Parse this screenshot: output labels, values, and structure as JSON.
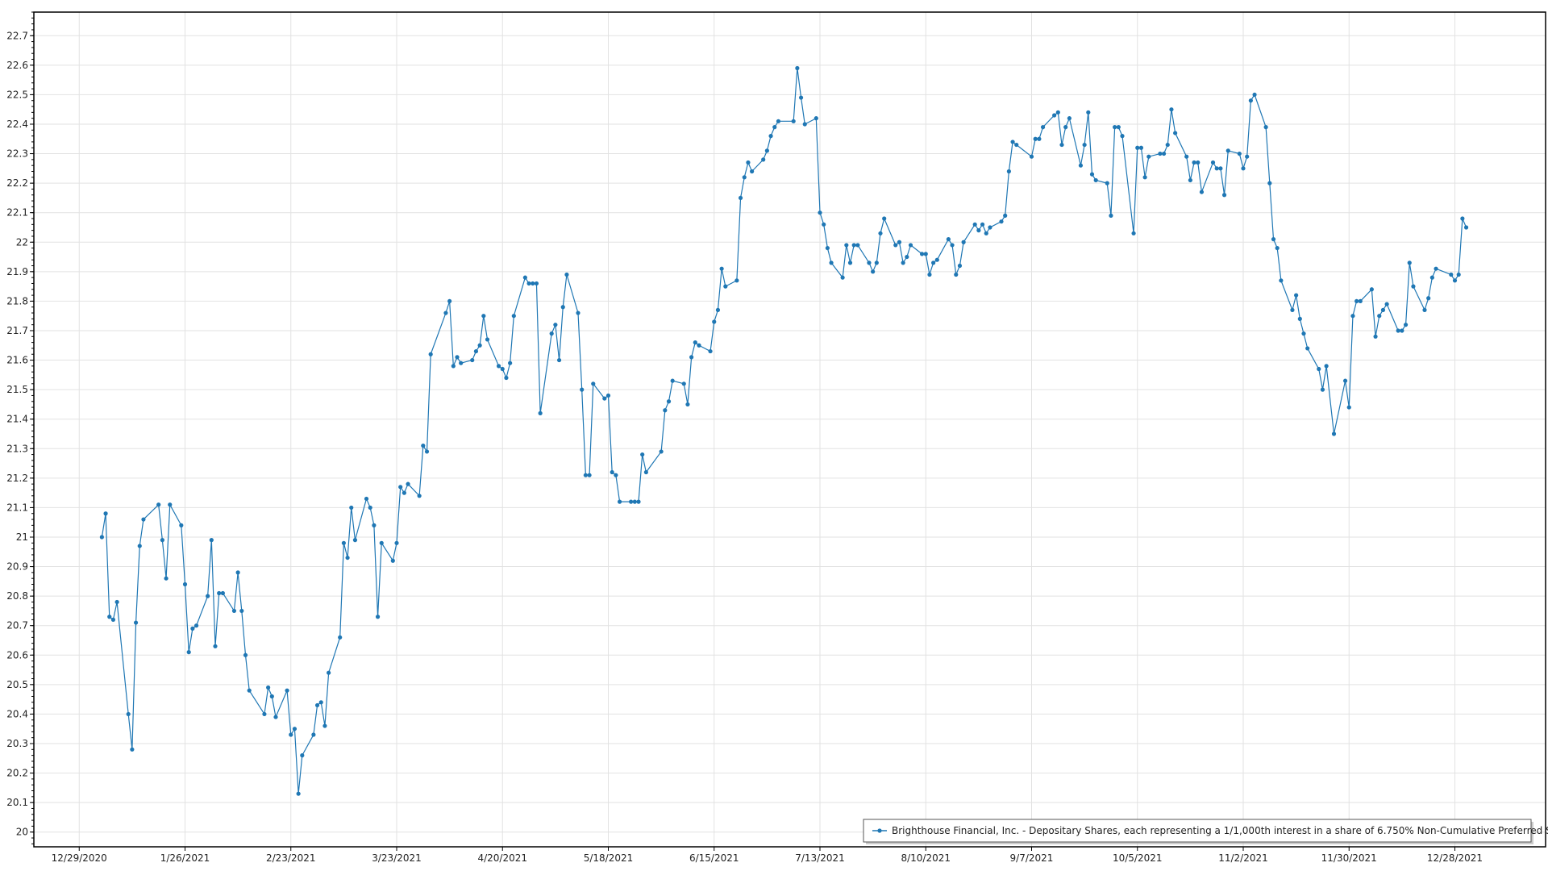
{
  "chart_data": {
    "type": "line",
    "title": "",
    "xlabel": "",
    "ylabel": "",
    "grid": true,
    "legend_position": "bottom-right",
    "line_color": "#1f77b4",
    "xlim": [
      "2020-12-17",
      "2022-01-21"
    ],
    "ylim": [
      19.95,
      22.78
    ],
    "x_ticks": [
      "12/29/2020",
      "1/26/2021",
      "2/23/2021",
      "3/23/2021",
      "4/20/2021",
      "5/18/2021",
      "6/15/2021",
      "7/13/2021",
      "8/10/2021",
      "9/7/2021",
      "10/5/2021",
      "11/2/2021",
      "11/30/2021",
      "12/28/2021"
    ],
    "y_ticks": [
      "20",
      "20.1",
      "20.2",
      "20.3",
      "20.4",
      "20.5",
      "20.6",
      "20.7",
      "20.8",
      "20.9",
      "21",
      "21.1",
      "21.2",
      "21.3",
      "21.4",
      "21.5",
      "21.6",
      "21.7",
      "21.8",
      "21.9",
      "22",
      "22.1",
      "22.2",
      "22.3",
      "22.4",
      "22.5",
      "22.6",
      "22.7"
    ],
    "series": [
      {
        "name": "Brighthouse Financial, Inc. - Depositary Shares, each representing a 1/1,000th interest in a share of 6.750% Non-Cumulative Preferred Stock, Series B",
        "x": [
          "2021-01-04",
          "2021-01-05",
          "2021-01-06",
          "2021-01-07",
          "2021-01-08",
          "2021-01-11",
          "2021-01-12",
          "2021-01-13",
          "2021-01-14",
          "2021-01-15",
          "2021-01-19",
          "2021-01-20",
          "2021-01-21",
          "2021-01-22",
          "2021-01-25",
          "2021-01-26",
          "2021-01-27",
          "2021-01-28",
          "2021-01-29",
          "2021-02-01",
          "2021-02-02",
          "2021-02-03",
          "2021-02-04",
          "2021-02-05",
          "2021-02-08",
          "2021-02-09",
          "2021-02-10",
          "2021-02-11",
          "2021-02-12",
          "2021-02-16",
          "2021-02-17",
          "2021-02-18",
          "2021-02-19",
          "2021-02-22",
          "2021-02-23",
          "2021-02-24",
          "2021-02-25",
          "2021-02-26",
          "2021-03-01",
          "2021-03-02",
          "2021-03-03",
          "2021-03-04",
          "2021-03-05",
          "2021-03-08",
          "2021-03-09",
          "2021-03-10",
          "2021-03-11",
          "2021-03-12",
          "2021-03-15",
          "2021-03-16",
          "2021-03-17",
          "2021-03-18",
          "2021-03-19",
          "2021-03-22",
          "2021-03-23",
          "2021-03-24",
          "2021-03-25",
          "2021-03-26",
          "2021-03-29",
          "2021-03-30",
          "2021-03-31",
          "2021-04-01",
          "2021-04-05",
          "2021-04-06",
          "2021-04-07",
          "2021-04-08",
          "2021-04-09",
          "2021-04-12",
          "2021-04-13",
          "2021-04-14",
          "2021-04-15",
          "2021-04-16",
          "2021-04-19",
          "2021-04-20",
          "2021-04-21",
          "2021-04-22",
          "2021-04-23",
          "2021-04-26",
          "2021-04-27",
          "2021-04-28",
          "2021-04-29",
          "2021-04-30",
          "2021-05-03",
          "2021-05-04",
          "2021-05-05",
          "2021-05-06",
          "2021-05-07",
          "2021-05-10",
          "2021-05-11",
          "2021-05-12",
          "2021-05-13",
          "2021-05-14",
          "2021-05-17",
          "2021-05-18",
          "2021-05-19",
          "2021-05-20",
          "2021-05-21",
          "2021-05-24",
          "2021-05-25",
          "2021-05-26",
          "2021-05-27",
          "2021-05-28",
          "2021-06-01",
          "2021-06-02",
          "2021-06-03",
          "2021-06-04",
          "2021-06-07",
          "2021-06-08",
          "2021-06-09",
          "2021-06-10",
          "2021-06-11",
          "2021-06-14",
          "2021-06-15",
          "2021-06-16",
          "2021-06-17",
          "2021-06-18",
          "2021-06-21",
          "2021-06-22",
          "2021-06-23",
          "2021-06-24",
          "2021-06-25",
          "2021-06-28",
          "2021-06-29",
          "2021-06-30",
          "2021-07-01",
          "2021-07-02",
          "2021-07-06",
          "2021-07-07",
          "2021-07-08",
          "2021-07-09",
          "2021-07-12",
          "2021-07-13",
          "2021-07-14",
          "2021-07-15",
          "2021-07-16",
          "2021-07-19",
          "2021-07-20",
          "2021-07-21",
          "2021-07-22",
          "2021-07-23",
          "2021-07-26",
          "2021-07-27",
          "2021-07-28",
          "2021-07-29",
          "2021-07-30",
          "2021-08-02",
          "2021-08-03",
          "2021-08-04",
          "2021-08-05",
          "2021-08-06",
          "2021-08-09",
          "2021-08-10",
          "2021-08-11",
          "2021-08-12",
          "2021-08-13",
          "2021-08-16",
          "2021-08-17",
          "2021-08-18",
          "2021-08-19",
          "2021-08-20",
          "2021-08-23",
          "2021-08-24",
          "2021-08-25",
          "2021-08-26",
          "2021-08-27",
          "2021-08-30",
          "2021-08-31",
          "2021-09-01",
          "2021-09-02",
          "2021-09-03",
          "2021-09-07",
          "2021-09-08",
          "2021-09-09",
          "2021-09-10",
          "2021-09-13",
          "2021-09-14",
          "2021-09-15",
          "2021-09-16",
          "2021-09-17",
          "2021-09-20",
          "2021-09-21",
          "2021-09-22",
          "2021-09-23",
          "2021-09-24",
          "2021-09-27",
          "2021-09-28",
          "2021-09-29",
          "2021-09-30",
          "2021-10-01",
          "2021-10-04",
          "2021-10-05",
          "2021-10-06",
          "2021-10-07",
          "2021-10-08",
          "2021-10-11",
          "2021-10-12",
          "2021-10-13",
          "2021-10-14",
          "2021-10-15",
          "2021-10-18",
          "2021-10-19",
          "2021-10-20",
          "2021-10-21",
          "2021-10-22",
          "2021-10-25",
          "2021-10-26",
          "2021-10-27",
          "2021-10-28",
          "2021-10-29",
          "2021-11-01",
          "2021-11-02",
          "2021-11-03",
          "2021-11-04",
          "2021-11-05",
          "2021-11-08",
          "2021-11-09",
          "2021-11-10",
          "2021-11-11",
          "2021-11-12",
          "2021-11-15",
          "2021-11-16",
          "2021-11-17",
          "2021-11-18",
          "2021-11-19",
          "2021-11-22",
          "2021-11-23",
          "2021-11-24",
          "2021-11-26",
          "2021-11-29",
          "2021-11-30",
          "2021-12-01",
          "2021-12-02",
          "2021-12-03",
          "2021-12-06",
          "2021-12-07",
          "2021-12-08",
          "2021-12-09",
          "2021-12-10",
          "2021-12-13",
          "2021-12-14",
          "2021-12-15",
          "2021-12-16",
          "2021-12-17",
          "2021-12-20",
          "2021-12-21",
          "2021-12-22",
          "2021-12-23",
          "2021-12-27",
          "2021-12-28",
          "2021-12-29",
          "2021-12-30",
          "2021-12-31"
        ],
        "y": [
          21.0,
          21.08,
          20.73,
          20.72,
          20.78,
          20.4,
          20.28,
          20.71,
          20.97,
          21.06,
          21.11,
          20.99,
          20.86,
          21.11,
          21.04,
          20.84,
          20.61,
          20.69,
          20.7,
          20.8,
          20.99,
          20.63,
          20.81,
          20.81,
          20.75,
          20.88,
          20.75,
          20.6,
          20.48,
          20.4,
          20.49,
          20.46,
          20.39,
          20.48,
          20.33,
          20.35,
          20.13,
          20.26,
          20.33,
          20.43,
          20.44,
          20.36,
          20.54,
          20.66,
          20.98,
          20.93,
          21.1,
          20.99,
          21.13,
          21.1,
          21.04,
          20.73,
          20.98,
          20.92,
          20.98,
          21.17,
          21.15,
          21.18,
          21.14,
          21.31,
          21.29,
          21.62,
          21.76,
          21.8,
          21.58,
          21.61,
          21.59,
          21.6,
          21.63,
          21.65,
          21.75,
          21.67,
          21.58,
          21.57,
          21.54,
          21.59,
          21.75,
          21.88,
          21.86,
          21.86,
          21.86,
          21.42,
          21.69,
          21.72,
          21.6,
          21.78,
          21.89,
          21.76,
          21.5,
          21.21,
          21.21,
          21.52,
          21.47,
          21.48,
          21.22,
          21.21,
          21.12,
          21.12,
          21.12,
          21.12,
          21.28,
          21.22,
          21.29,
          21.43,
          21.46,
          21.53,
          21.52,
          21.45,
          21.61,
          21.66,
          21.65,
          21.63,
          21.73,
          21.77,
          21.91,
          21.85,
          21.87,
          22.15,
          22.22,
          22.27,
          22.24,
          22.28,
          22.31,
          22.36,
          22.39,
          22.41,
          22.41,
          22.59,
          22.49,
          22.4,
          22.42,
          22.1,
          22.06,
          21.98,
          21.93,
          21.88,
          21.99,
          21.93,
          21.99,
          21.99,
          21.93,
          21.9,
          21.93,
          22.03,
          22.08,
          21.99,
          22.0,
          21.93,
          21.95,
          21.99,
          21.96,
          21.96,
          21.89,
          21.93,
          21.94,
          22.01,
          21.99,
          21.89,
          21.92,
          22.0,
          22.06,
          22.04,
          22.06,
          22.03,
          22.05,
          22.07,
          22.09,
          22.24,
          22.34,
          22.33,
          22.29,
          22.35,
          22.35,
          22.39,
          22.43,
          22.44,
          22.33,
          22.39,
          22.42,
          22.26,
          22.33,
          22.44,
          22.23,
          22.21,
          22.2,
          22.09,
          22.39,
          22.39,
          22.36,
          22.03,
          22.32,
          22.32,
          22.22,
          22.29,
          22.3,
          22.3,
          22.33,
          22.45,
          22.37,
          22.29,
          22.21,
          22.27,
          22.27,
          22.17,
          22.27,
          22.25,
          22.25,
          22.16,
          22.31,
          22.3,
          22.25,
          22.29,
          22.48,
          22.5,
          22.39,
          22.2,
          22.01,
          21.98,
          21.87,
          21.77,
          21.82,
          21.74,
          21.69,
          21.64,
          21.57,
          21.5,
          21.58,
          21.35,
          21.53,
          21.44,
          21.75,
          21.8,
          21.8,
          21.84,
          21.68,
          21.75,
          21.77,
          21.79,
          21.7,
          21.7,
          21.72,
          21.93,
          21.85,
          21.77,
          21.81,
          21.88,
          21.91,
          21.89,
          21.87,
          21.89,
          22.08,
          22.05
        ]
      }
    ]
  }
}
